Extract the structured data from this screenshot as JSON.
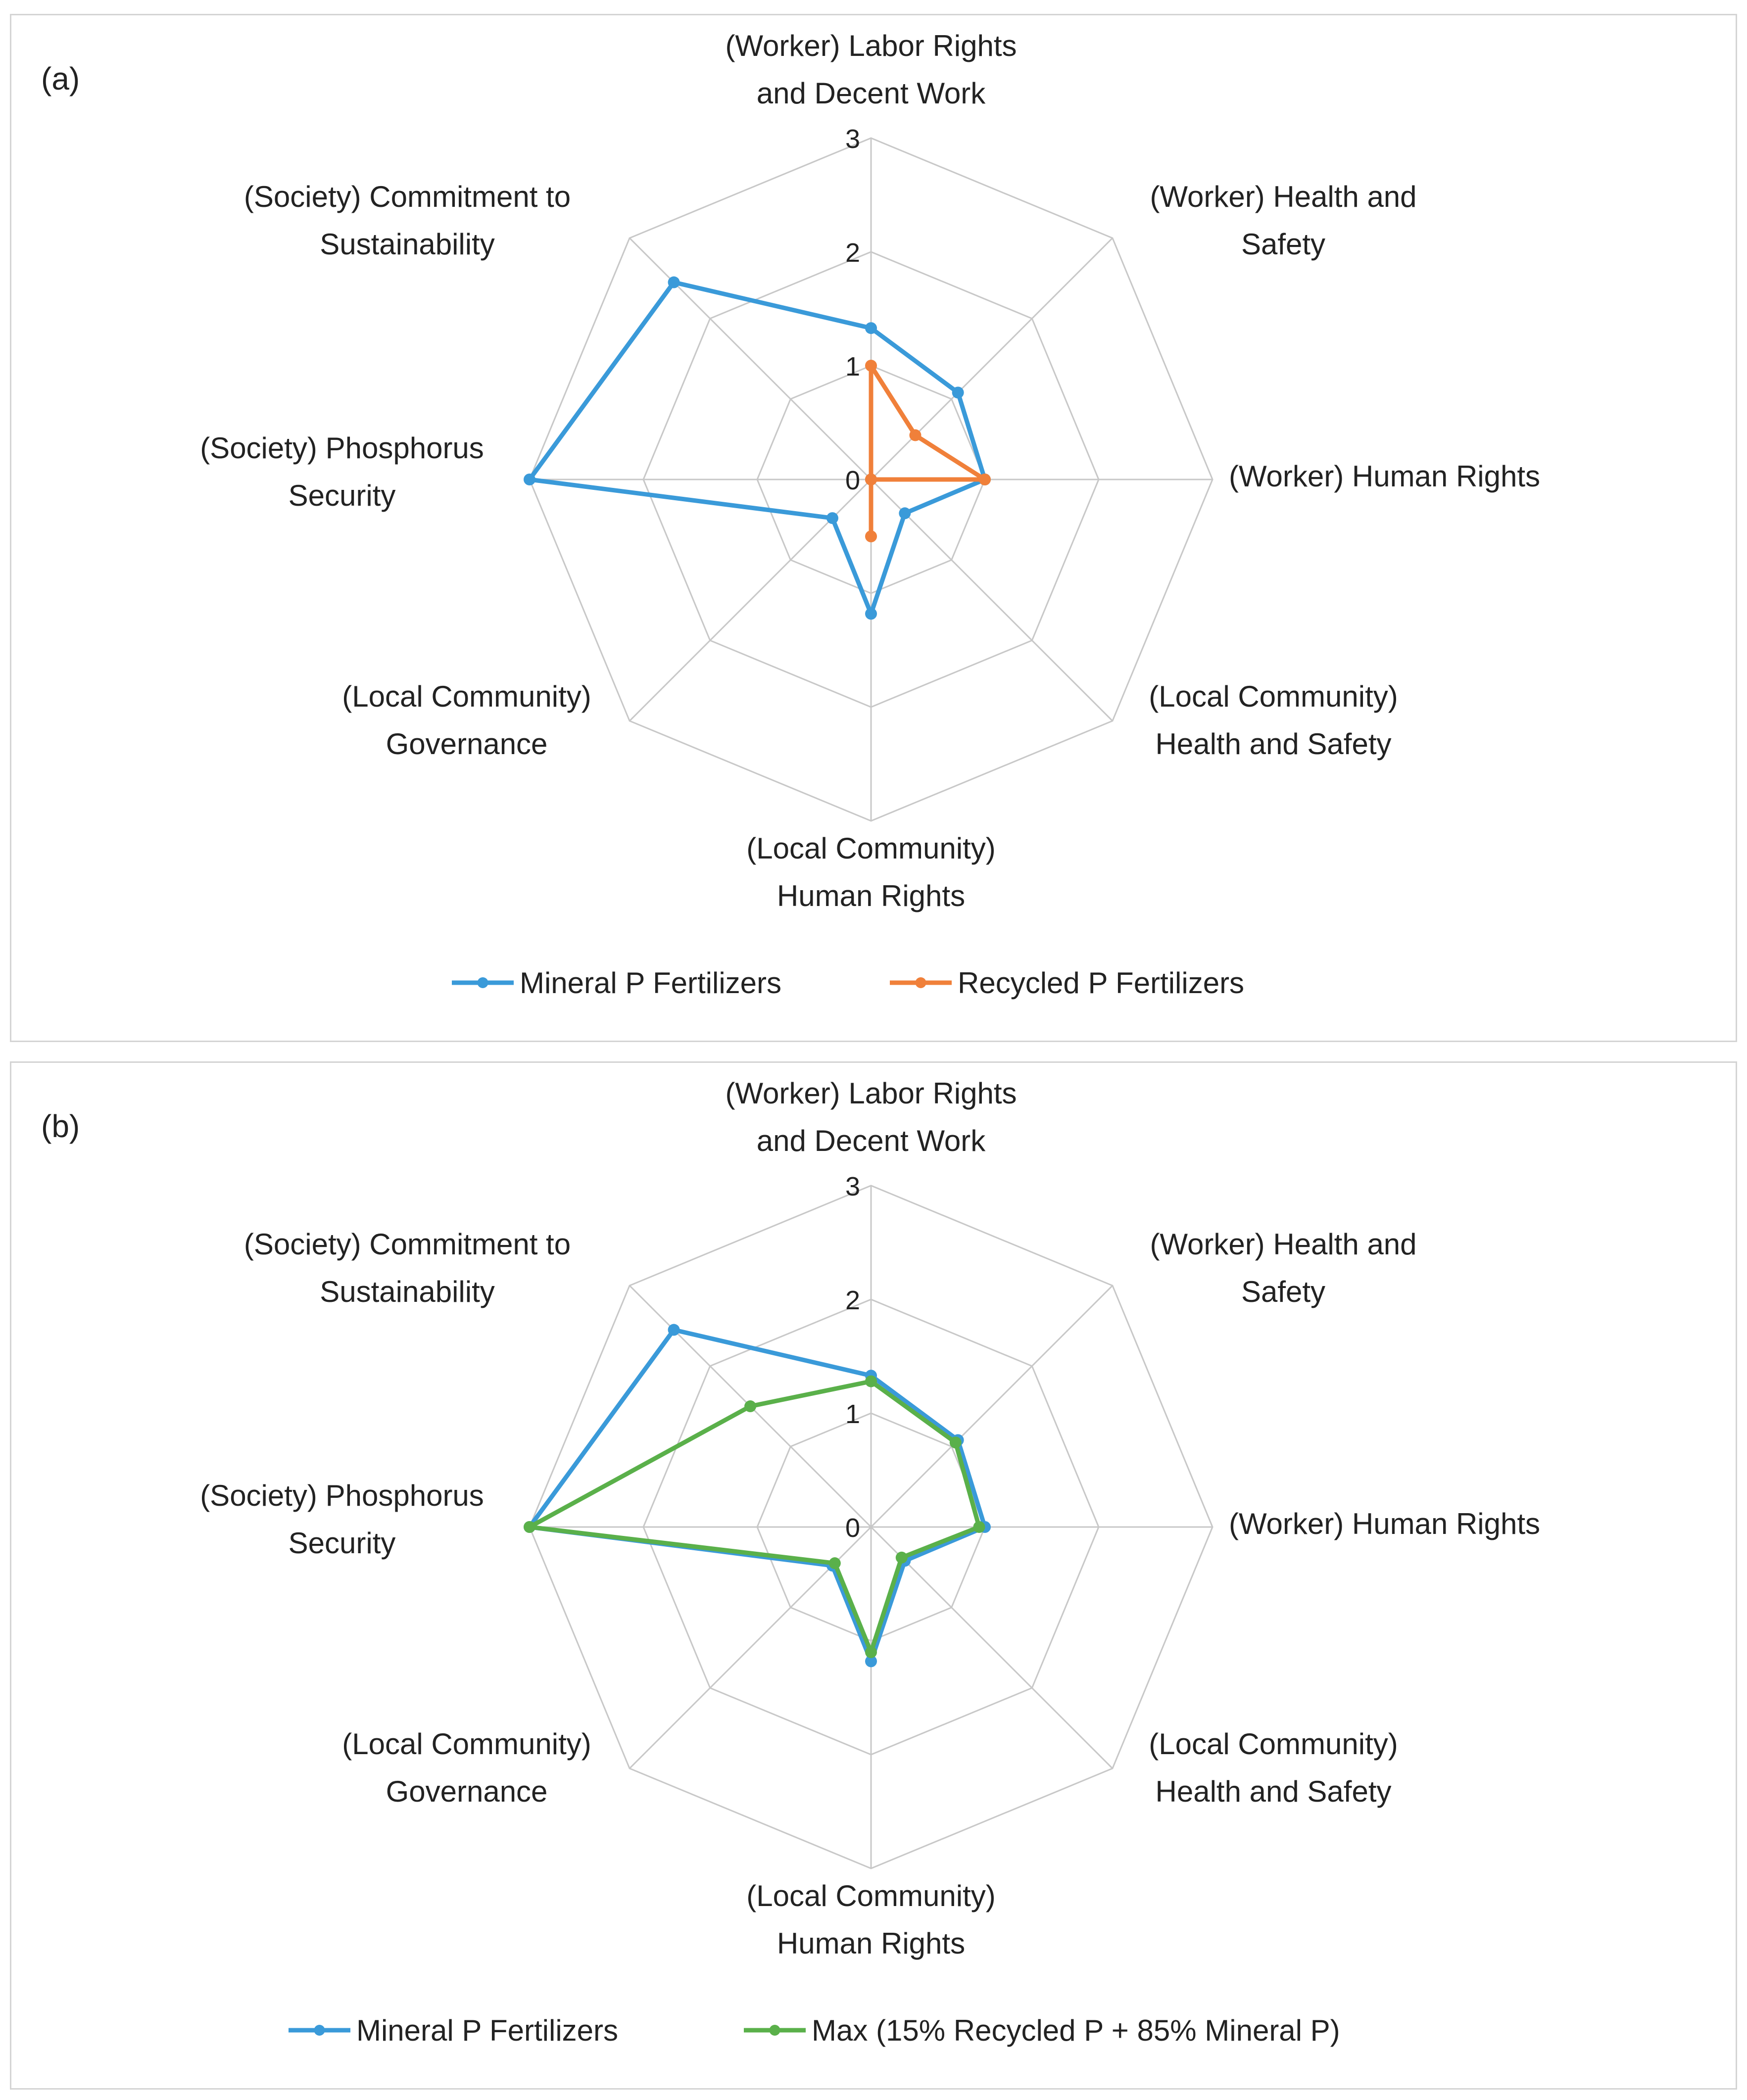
{
  "chart_data": [
    {
      "type": "radar",
      "panel_label": "(a)",
      "axes": [
        [
          "(Worker)  Labor Rights",
          "and Decent Work"
        ],
        [
          "(Worker)  Health and",
          "Safety"
        ],
        [
          "(Worker)  Human Rights"
        ],
        [
          "(Local Community)",
          "Health and Safety"
        ],
        [
          "(Local Community)",
          "Human Rights"
        ],
        [
          "(Local Community)",
          "Governance"
        ],
        [
          "(Society)  Phosphorus",
          "Security"
        ],
        [
          "(Society)  Commitment to",
          "Sustainability"
        ]
      ],
      "rlim": [
        0,
        3
      ],
      "ticks": [
        0,
        1,
        2,
        3
      ],
      "legend_position": "bottom",
      "series": [
        {
          "name": "Mineral P  Fertilizers",
          "color": "#3a9ad9",
          "values": [
            1.33,
            1.08,
            1.0,
            0.42,
            1.18,
            0.48,
            3.0,
            2.45
          ]
        },
        {
          "name": "Recycled P Fertilizers",
          "color": "#f0803a",
          "values": [
            1.0,
            0.55,
            1.0,
            0.0,
            0.5,
            0.0,
            0.0,
            0.0
          ]
        }
      ]
    },
    {
      "type": "radar",
      "panel_label": "(b)",
      "axes": [
        [
          "(Worker)  Labor Rights",
          "and Decent Work"
        ],
        [
          "(Worker)  Health and",
          "Safety"
        ],
        [
          "(Worker)  Human Rights"
        ],
        [
          "(Local Community)",
          "Health and Safety"
        ],
        [
          "(Local Community)",
          "Human Rights"
        ],
        [
          "(Local Community)",
          "Governance"
        ],
        [
          "(Society)  Phosphorus",
          "Security"
        ],
        [
          "(Society)  Commitment to",
          "Sustainability"
        ]
      ],
      "rlim": [
        0,
        3
      ],
      "ticks": [
        0,
        1,
        2,
        3
      ],
      "legend_position": "bottom",
      "series": [
        {
          "name": "Mineral P  Fertilizers",
          "color": "#3a9ad9",
          "values": [
            1.33,
            1.08,
            1.0,
            0.42,
            1.18,
            0.48,
            3.0,
            2.45
          ]
        },
        {
          "name": "Max (15% Recycled P + 85% Mineral P)",
          "color": "#5ab04a",
          "values": [
            1.28,
            1.05,
            0.95,
            0.38,
            1.1,
            0.45,
            3.0,
            1.5
          ]
        }
      ]
    }
  ]
}
